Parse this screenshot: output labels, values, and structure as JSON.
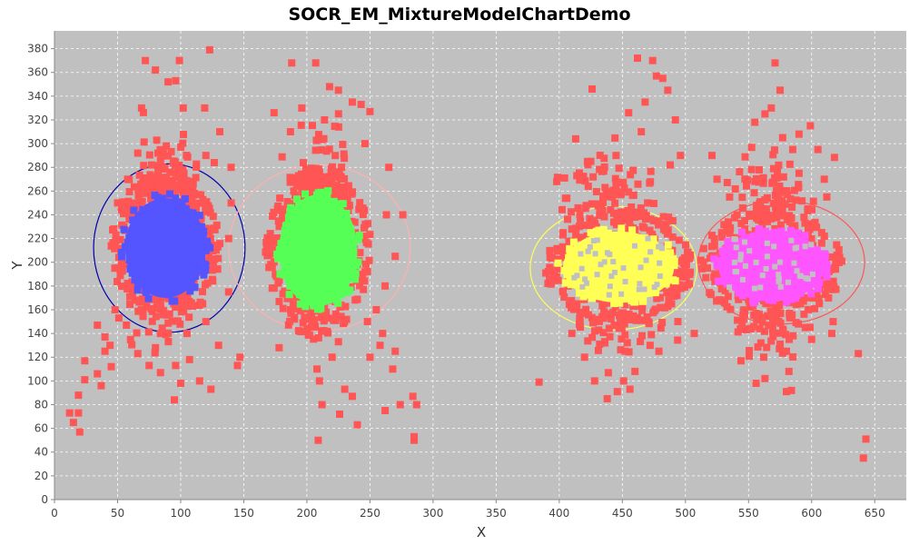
{
  "chart_data": {
    "type": "scatter",
    "title": "SOCR_EM_MixtureModelChartDemo",
    "xlabel": "X",
    "ylabel": "Y",
    "xlim": [
      0,
      675
    ],
    "ylim": [
      0,
      395
    ],
    "xticks": [
      0,
      50,
      100,
      150,
      200,
      250,
      300,
      350,
      400,
      450,
      500,
      550,
      600,
      650
    ],
    "yticks": [
      0,
      20,
      40,
      60,
      80,
      100,
      120,
      140,
      160,
      180,
      200,
      220,
      240,
      260,
      280,
      300,
      320,
      340,
      360,
      380
    ],
    "grid": true,
    "colors": {
      "background": "#c0c0c0",
      "grid": "#ffffff",
      "points": "#ff5555"
    },
    "series": [
      {
        "color": "#ff5555",
        "values": [
          [
            12,
            73
          ],
          [
            15,
            65
          ],
          [
            19,
            73
          ],
          [
            20,
            57
          ],
          [
            19,
            88
          ],
          [
            24,
            101
          ],
          [
            24,
            117
          ],
          [
            34,
            106
          ],
          [
            37,
            96
          ],
          [
            40,
            125
          ],
          [
            40,
            137
          ],
          [
            44,
            130
          ],
          [
            45,
            112
          ],
          [
            48,
            160
          ],
          [
            51,
            153
          ],
          [
            34,
            147
          ],
          [
            72,
            370
          ],
          [
            80,
            362
          ],
          [
            90,
            352
          ],
          [
            96,
            353
          ],
          [
            99,
            370
          ],
          [
            123,
            379
          ],
          [
            69,
            330
          ],
          [
            102,
            330
          ],
          [
            119,
            330
          ],
          [
            131,
            310
          ],
          [
            66,
            292
          ],
          [
            77,
            282
          ],
          [
            58,
            270
          ],
          [
            50,
            250
          ],
          [
            120,
            290
          ],
          [
            140,
            280
          ],
          [
            140,
            250
          ],
          [
            138,
            220
          ],
          [
            138,
            175
          ],
          [
            120,
            150
          ],
          [
            105,
            140
          ],
          [
            84,
            140
          ],
          [
            80,
            128
          ],
          [
            66,
            123
          ],
          [
            75,
            113
          ],
          [
            84,
            107
          ],
          [
            96,
            113
          ],
          [
            107,
            118
          ],
          [
            100,
            98
          ],
          [
            115,
            100
          ],
          [
            124,
            93
          ],
          [
            95,
            84
          ],
          [
            57,
            147
          ],
          [
            130,
            130
          ],
          [
            147,
            120
          ],
          [
            145,
            113
          ],
          [
            188,
            368
          ],
          [
            207,
            368
          ],
          [
            218,
            348
          ],
          [
            225,
            345
          ],
          [
            236,
            335
          ],
          [
            243,
            333
          ],
          [
            250,
            327
          ],
          [
            174,
            326
          ],
          [
            196,
            330
          ],
          [
            214,
            320
          ],
          [
            187,
            310
          ],
          [
            246,
            300
          ],
          [
            265,
            280
          ],
          [
            276,
            240
          ],
          [
            263,
            240
          ],
          [
            270,
            205
          ],
          [
            262,
            180
          ],
          [
            255,
            160
          ],
          [
            248,
            150
          ],
          [
            260,
            140
          ],
          [
            250,
            120
          ],
          [
            258,
            130
          ],
          [
            270,
            125
          ],
          [
            225,
            133
          ],
          [
            208,
            110
          ],
          [
            210,
            100
          ],
          [
            220,
            120
          ],
          [
            230,
            93
          ],
          [
            236,
            87
          ],
          [
            212,
            80
          ],
          [
            226,
            72
          ],
          [
            240,
            63
          ],
          [
            262,
            75
          ],
          [
            268,
            110
          ],
          [
            274,
            80
          ],
          [
            284,
            87
          ],
          [
            287,
            80
          ],
          [
            285,
            53
          ],
          [
            285,
            50
          ],
          [
            209,
            50
          ],
          [
            178,
            128
          ],
          [
            174,
            215
          ],
          [
            175,
            190
          ],
          [
            384,
            99
          ],
          [
            398,
            268
          ],
          [
            405,
            254
          ],
          [
            410,
            228
          ],
          [
            407,
            180
          ],
          [
            410,
            140
          ],
          [
            420,
            120
          ],
          [
            428,
            100
          ],
          [
            432,
            131
          ],
          [
            438,
            85
          ],
          [
            446,
            91
          ],
          [
            452,
            125
          ],
          [
            456,
            93
          ],
          [
            460,
            108
          ],
          [
            451,
            100
          ],
          [
            472,
            130
          ],
          [
            479,
            125
          ],
          [
            489,
            165
          ],
          [
            494,
            150
          ],
          [
            473,
            139
          ],
          [
            413,
            304
          ],
          [
            426,
            346
          ],
          [
            455,
            326
          ],
          [
            468,
            335
          ],
          [
            462,
            372
          ],
          [
            474,
            370
          ],
          [
            477,
            357
          ],
          [
            482,
            355
          ],
          [
            486,
            345
          ],
          [
            492,
            320
          ],
          [
            496,
            290
          ],
          [
            465,
            310
          ],
          [
            445,
            290
          ],
          [
            425,
            285
          ],
          [
            445,
            265
          ],
          [
            470,
            250
          ],
          [
            490,
            235
          ],
          [
            507,
            140
          ],
          [
            521,
            290
          ],
          [
            525,
            270
          ],
          [
            535,
            255
          ],
          [
            547,
            235
          ],
          [
            555,
            318
          ],
          [
            563,
            325
          ],
          [
            568,
            330
          ],
          [
            575,
            345
          ],
          [
            571,
            368
          ],
          [
            577,
            305
          ],
          [
            585,
            295
          ],
          [
            590,
            308
          ],
          [
            599,
            315
          ],
          [
            610,
            270
          ],
          [
            612,
            255
          ],
          [
            608,
            225
          ],
          [
            617,
            150
          ],
          [
            616,
            140
          ],
          [
            595,
            145
          ],
          [
            600,
            135
          ],
          [
            580,
            125
          ],
          [
            582,
            108
          ],
          [
            580,
            91
          ],
          [
            563,
            102
          ],
          [
            556,
            98
          ],
          [
            544,
            117
          ],
          [
            562,
            120
          ],
          [
            575,
            131
          ],
          [
            584,
            92
          ],
          [
            637,
            123
          ],
          [
            641,
            35
          ],
          [
            643,
            51
          ],
          [
            605,
            295
          ],
          [
            590,
            275
          ]
        ]
      }
    ],
    "clusters": [
      {
        "cx": 88,
        "cy": 212,
        "rx": 32,
        "ry": 42,
        "fill": "#5555ff",
        "ellipse": {
          "cx": 91,
          "cy": 212,
          "rx": 60,
          "ry": 71,
          "color": "#0000aa"
        }
      },
      {
        "cx": 209,
        "cy": 210,
        "rx": 31,
        "ry": 47,
        "fill": "#55ff55",
        "ellipse": {
          "cx": 210,
          "cy": 212,
          "rx": 72,
          "ry": 70,
          "color": "#ffb0b0"
        }
      },
      {
        "cx": 447,
        "cy": 196,
        "rx": 44,
        "ry": 30,
        "fill": "#ffff55",
        "ellipse": {
          "cx": 443,
          "cy": 195,
          "rx": 66,
          "ry": 52,
          "color": "#ffff55"
        }
      },
      {
        "cx": 568,
        "cy": 197,
        "rx": 42,
        "ry": 30,
        "fill": "#ff55ff",
        "ellipse": {
          "cx": 576,
          "cy": 200,
          "rx": 66,
          "ry": 52,
          "color": "#ff5555"
        }
      }
    ]
  }
}
